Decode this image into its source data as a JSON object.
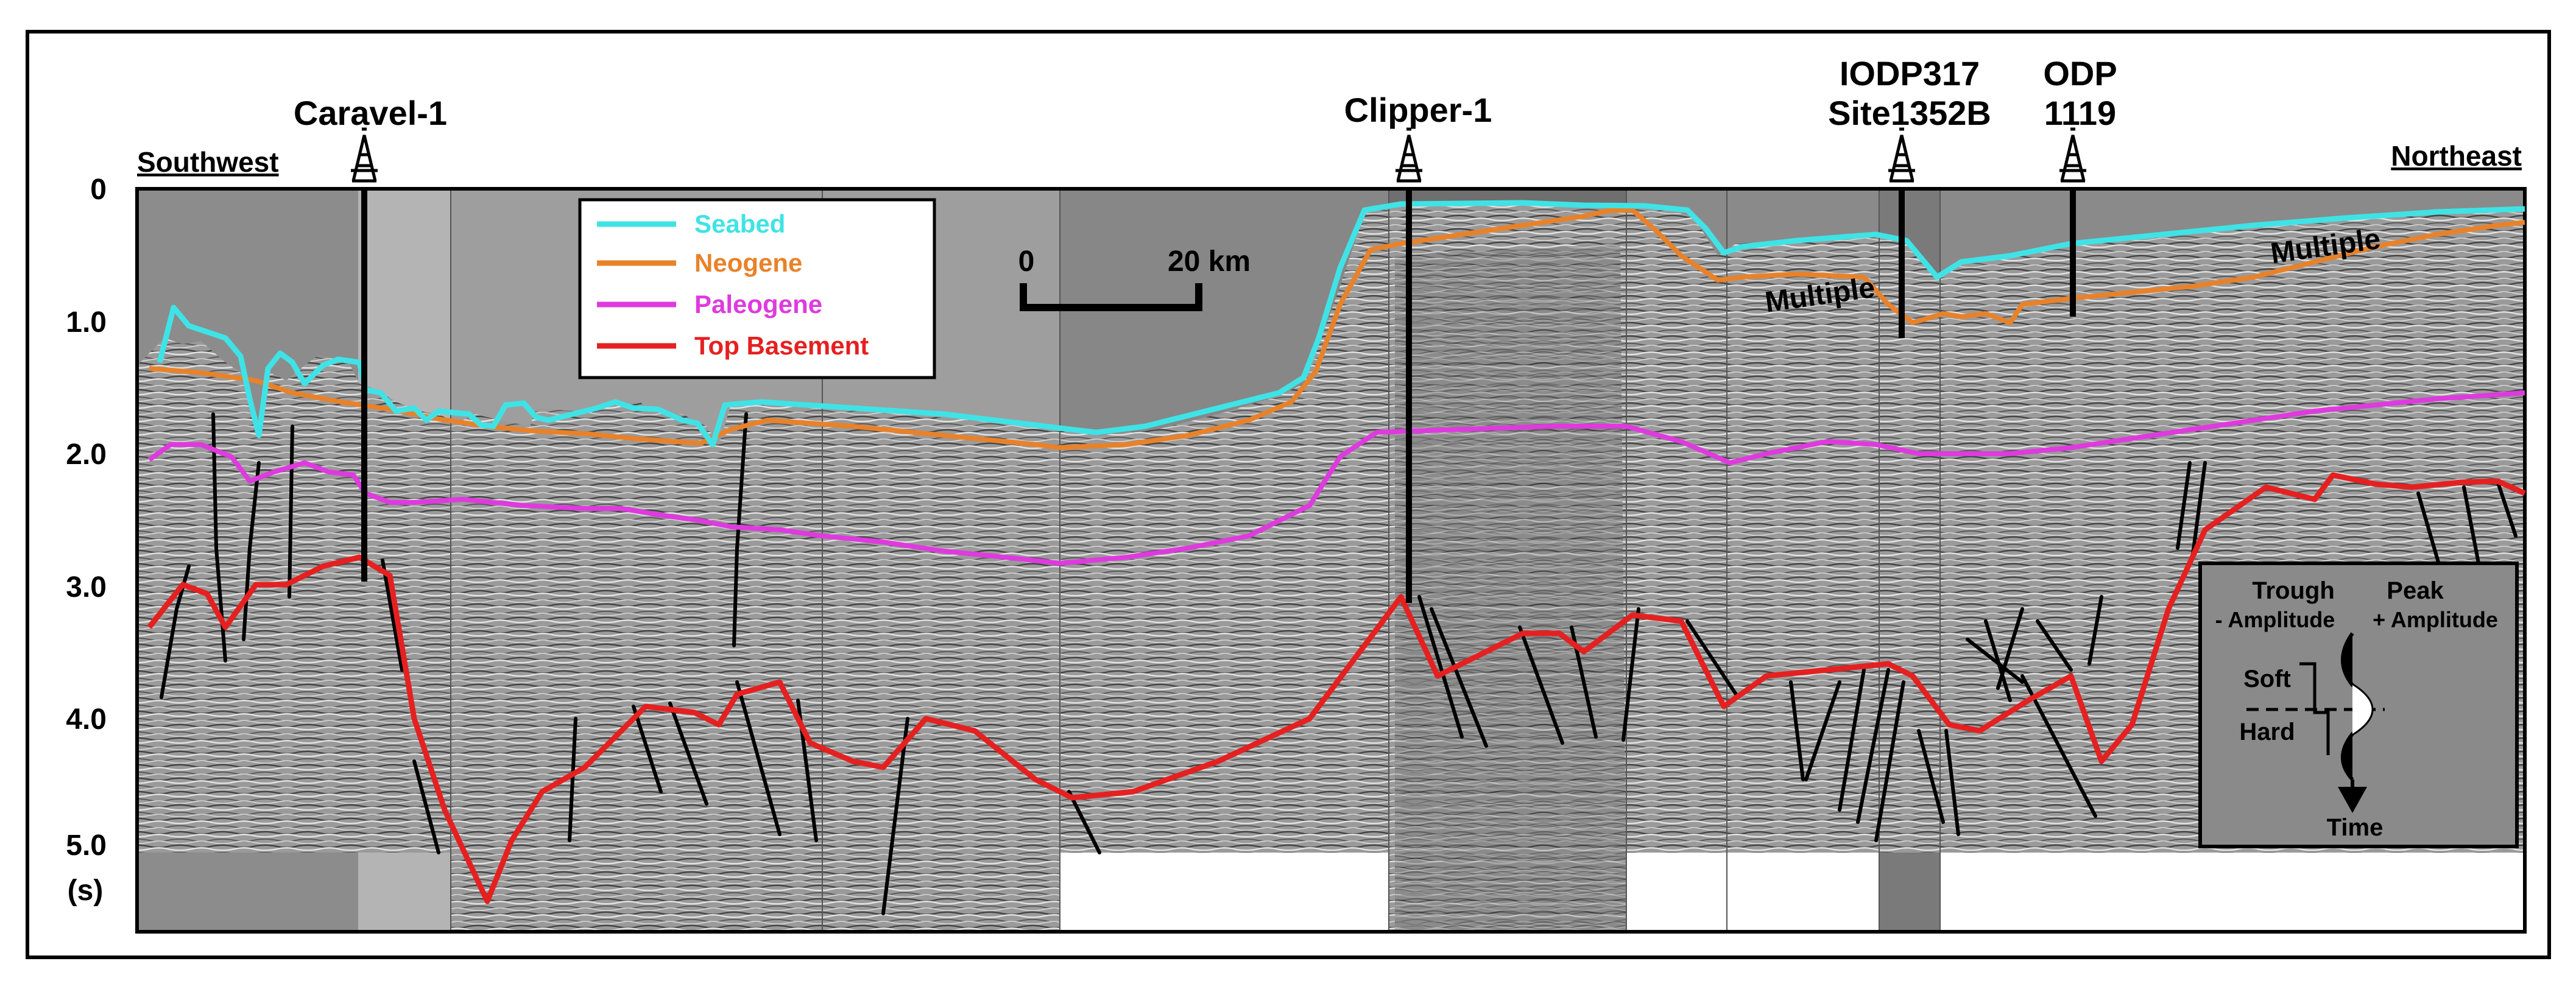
{
  "axis": {
    "ticks": [
      "0",
      "1.0",
      "2.0",
      "3.0",
      "4.0",
      "5.0"
    ],
    "unit": "(s)"
  },
  "directions": {
    "left": "Southwest",
    "right": "Northeast"
  },
  "wells": {
    "caravel": {
      "label": "Caravel-1"
    },
    "clipper": {
      "label": "Clipper-1"
    },
    "iodp": {
      "line1": "IODP317",
      "line2": "Site1352B"
    },
    "odp": {
      "line1": "ODP",
      "line2": "1119"
    }
  },
  "legend": {
    "items": [
      {
        "label": "Seabed",
        "color": "#3fe3e6"
      },
      {
        "label": "Neogene",
        "color": "#e8822a"
      },
      {
        "label": "Paleogene",
        "color": "#de3ade"
      },
      {
        "label": "Top Basement",
        "color": "#e52020"
      }
    ]
  },
  "scale": {
    "start": "0",
    "end": "20 km"
  },
  "annotations": {
    "multiple_left": "Multiple",
    "multiple_right": "Multiple"
  },
  "polarity": {
    "trough": "Trough",
    "trough_sub": "- Amplitude",
    "peak": "Peak",
    "peak_sub": "+ Amplitude",
    "soft": "Soft",
    "hard": "Hard",
    "time": "Time"
  }
}
